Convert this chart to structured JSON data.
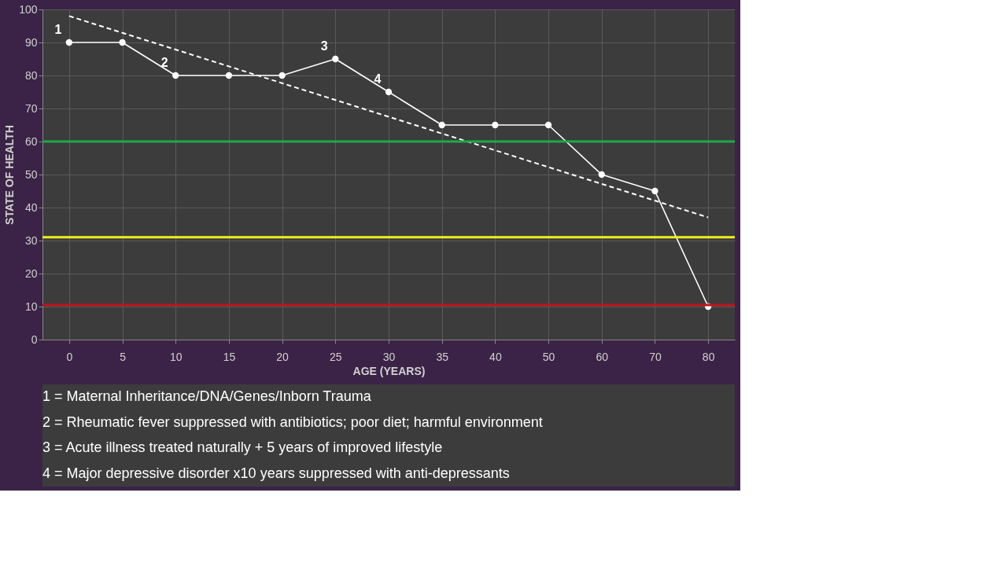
{
  "chart_data": {
    "type": "line",
    "xlabel": "AGE (YEARS)",
    "ylabel": "STATE OF HEALTH",
    "categories": [
      "0",
      "5",
      "10",
      "15",
      "20",
      "25",
      "30",
      "35",
      "40",
      "50",
      "60",
      "70",
      "80"
    ],
    "series": [
      {
        "color": "#ffffff",
        "values": [
          90,
          90,
          80,
          80,
          80,
          85,
          75,
          65,
          65,
          65,
          50,
          45,
          10
        ],
        "marker": "circle",
        "line_style": "solid"
      },
      {
        "type": "line",
        "color": "#ffffff",
        "x": [
          "0",
          "80"
        ],
        "values": [
          98,
          37
        ],
        "marker": "none",
        "line_style": "dashed"
      }
    ],
    "ylim": [
      0,
      100
    ],
    "yticks": [
      0,
      10,
      20,
      30,
      40,
      50,
      60,
      70,
      80,
      90,
      100
    ],
    "grid": true,
    "ref_lines": [
      {
        "axis": "y",
        "value": 60,
        "color": "#1fa84a"
      },
      {
        "axis": "y",
        "value": 31,
        "color": "#f2ef1a"
      },
      {
        "axis": "y",
        "value": 10.5,
        "color": "#c0131b"
      }
    ],
    "annotations": [
      {
        "text": "1",
        "x": "0",
        "y": 90
      },
      {
        "text": "2",
        "x": "10",
        "y": 80
      },
      {
        "text": "3",
        "x": "25",
        "y": 85
      },
      {
        "text": "4",
        "x": "30",
        "y": 75
      },
      "1 = Maternal Inheritance/DNA/Genes/Inborn Trauma",
      "2 = Rheumatic fever suppressed with antibiotics; poor diet; harmful environment",
      "3 = Acute illness treated naturally + 5 years of improved lifestyle",
      "4 = Major depressive disorder x10 years suppressed with anti-depressants"
    ]
  }
}
